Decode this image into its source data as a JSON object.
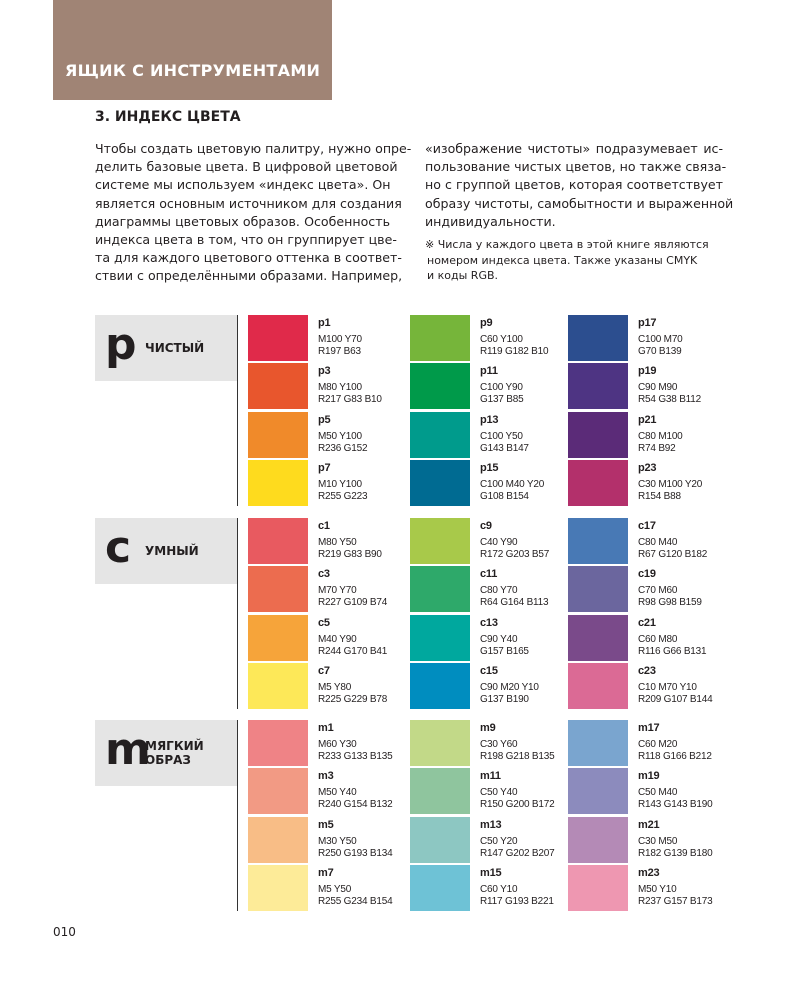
{
  "header": {
    "title": "ЯЩИК С ИНСТРУМЕНТАМИ"
  },
  "section": {
    "title": "3. ИНДЕКС ЦВЕТА"
  },
  "intro": {
    "left_lines": [
      "Чтобы создать цветовую палитру, нужно опре-",
      "делить базовые цвета. В цифровой цветовой",
      "системе мы используем «индекс цвета». Он",
      "является основным источником для создания",
      "диаграммы цветовых образов. Особенность",
      "индекса цвета в том, что он группирует цве-",
      "та для каждого цветового оттенка в соответ-",
      "ствии с определёнными образами. Например,"
    ],
    "right_lines": [
      "«изображение чистоты» подразумевает ис-",
      "пользование чистых цветов, но также связа-",
      "но с группой цветов, которая соответствует",
      "образу чистоты, самобытности и выраженной",
      "индивидуальности."
    ],
    "note_lines": [
      "※ Числа у каждого цвета в этой книге являются",
      "номером индекса цвета. Также указаны CMYK",
      "и коды RGB."
    ]
  },
  "groups": [
    {
      "letter": "p",
      "name_lines": [
        "ЧИСТЫЙ"
      ],
      "swatches": [
        {
          "id": "p1",
          "cmyk": "M100 Y70",
          "rgb": "R197 B63",
          "color": "#e02a4a"
        },
        {
          "id": "p3",
          "cmyk": "M80 Y100",
          "rgb": "R217 G83 B10",
          "color": "#e8562d"
        },
        {
          "id": "p5",
          "cmyk": "M50 Y100",
          "rgb": "R236 G152",
          "color": "#f08a2a"
        },
        {
          "id": "p7",
          "cmyk": "M10 Y100",
          "rgb": "R255 G223",
          "color": "#fedb1e"
        },
        {
          "id": "p9",
          "cmyk": "C60 Y100",
          "rgb": "R119 G182 B10",
          "color": "#76b53a"
        },
        {
          "id": "p11",
          "cmyk": "C100 Y90",
          "rgb": "G137 B85",
          "color": "#009a4a"
        },
        {
          "id": "p13",
          "cmyk": "C100 Y50",
          "rgb": "G143 B147",
          "color": "#009b8c"
        },
        {
          "id": "p15",
          "cmyk": "C100 M40 Y20",
          "rgb": "G108 B154",
          "color": "#006b92"
        },
        {
          "id": "p17",
          "cmyk": "C100 M70",
          "rgb": "G70 B139",
          "color": "#2c4e8f"
        },
        {
          "id": "p19",
          "cmyk": "C90 M90",
          "rgb": "R54 G38 B112",
          "color": "#4e3483"
        },
        {
          "id": "p21",
          "cmyk": "C80 M100",
          "rgb": "R74 B92",
          "color": "#5b2b78"
        },
        {
          "id": "p23",
          "cmyk": "C30 M100 Y20",
          "rgb": "R154 B88",
          "color": "#b3306b"
        }
      ]
    },
    {
      "letter": "c",
      "name_lines": [
        "УМНЫЙ"
      ],
      "swatches": [
        {
          "id": "c1",
          "cmyk": "M80 Y50",
          "rgb": "R219 G83 B90",
          "color": "#e85a60"
        },
        {
          "id": "c3",
          "cmyk": "M70 Y70",
          "rgb": "R227 G109 B74",
          "color": "#ec6c4f"
        },
        {
          "id": "c5",
          "cmyk": "M40 Y90",
          "rgb": "R244 G170 B41",
          "color": "#f6a43a"
        },
        {
          "id": "c7",
          "cmyk": "M5 Y80",
          "rgb": "R225 G229 B78",
          "color": "#fde858"
        },
        {
          "id": "c9",
          "cmyk": "C40 Y90",
          "rgb": "R172 G203 B57",
          "color": "#a8c94a"
        },
        {
          "id": "c11",
          "cmyk": "C80 Y70",
          "rgb": "R64 G164 B113",
          "color": "#2ea96a"
        },
        {
          "id": "c13",
          "cmyk": "C90 Y40",
          "rgb": "G157 B165",
          "color": "#00a89e"
        },
        {
          "id": "c15",
          "cmyk": "C90 M20 Y10",
          "rgb": "G137 B190",
          "color": "#008dbf"
        },
        {
          "id": "c17",
          "cmyk": "C80 M40",
          "rgb": "R67 G120 B182",
          "color": "#4879b5"
        },
        {
          "id": "c19",
          "cmyk": "C70 M60",
          "rgb": "R98 G98 B159",
          "color": "#6b669e"
        },
        {
          "id": "c21",
          "cmyk": "C60 M80",
          "rgb": "R116 G66 B131",
          "color": "#7a4a8a"
        },
        {
          "id": "c23",
          "cmyk": "C10 M70 Y10",
          "rgb": "R209 G107 B144",
          "color": "#db6a95"
        }
      ]
    },
    {
      "letter": "m",
      "name_lines": [
        "МЯГКИЙ",
        "ОБРАЗ"
      ],
      "swatches": [
        {
          "id": "m1",
          "cmyk": "M60 Y30",
          "rgb": "R233 G133 B135",
          "color": "#ef8386"
        },
        {
          "id": "m3",
          "cmyk": "M50 Y40",
          "rgb": "R240 G154 B132",
          "color": "#f29a84"
        },
        {
          "id": "m5",
          "cmyk": "M30 Y50",
          "rgb": "R250 G193 B134",
          "color": "#f8bd86"
        },
        {
          "id": "m7",
          "cmyk": "M5 Y50",
          "rgb": "R255 G234 B154",
          "color": "#fdeb98"
        },
        {
          "id": "m9",
          "cmyk": "C30 Y60",
          "rgb": "R198 G218 B135",
          "color": "#c2d988"
        },
        {
          "id": "m11",
          "cmyk": "C50 Y40",
          "rgb": "R150 G200 B172",
          "color": "#8fc59e"
        },
        {
          "id": "m13",
          "cmyk": "C50 Y20",
          "rgb": "R147 G202 B207",
          "color": "#8dc7c2"
        },
        {
          "id": "m15",
          "cmyk": "C60 Y10",
          "rgb": "R117 G193 B221",
          "color": "#6ec2d6"
        },
        {
          "id": "m17",
          "cmyk": "C60 M20",
          "rgb": "R118 G166 B212",
          "color": "#7aa5cf"
        },
        {
          "id": "m19",
          "cmyk": "C50 M40",
          "rgb": "R143 G143 B190",
          "color": "#8c8bbd"
        },
        {
          "id": "m21",
          "cmyk": "C30 M50",
          "rgb": "R182 G139 B180",
          "color": "#b48ab6"
        },
        {
          "id": "m23",
          "cmyk": "M50 Y10",
          "rgb": "R237 G157 B173",
          "color": "#ee97b1"
        }
      ]
    }
  ],
  "footer": {
    "page": "010"
  }
}
